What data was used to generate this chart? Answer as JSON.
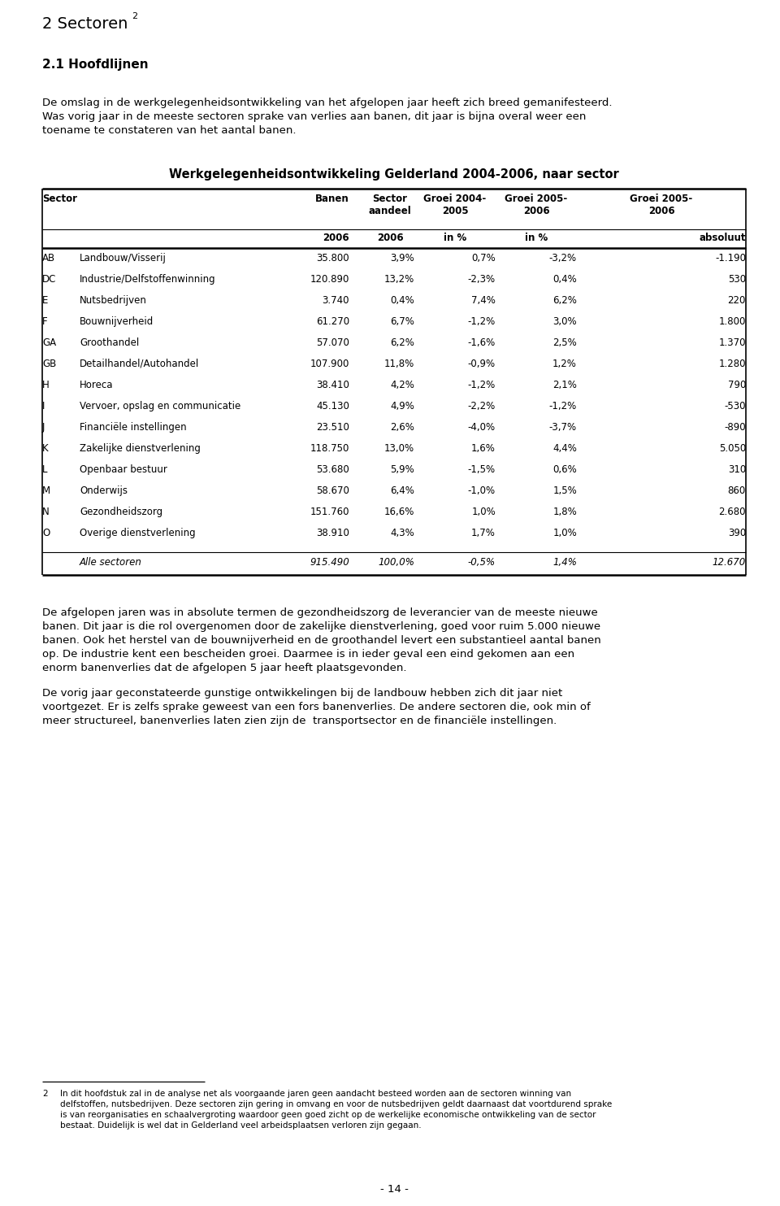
{
  "page_title": "2 Sectoren",
  "page_title_sup": "2",
  "section_title": "2.1 Hoofdlijnen",
  "para1_lines": [
    "De omslag in de werkgelegenheidsontwikkeling van het afgelopen jaar heeft zich breed gemanifesteerd.",
    "Was vorig jaar in de meeste sectoren sprake van verlies aan banen, dit jaar is bijna overal weer een",
    "toename te constateren van het aantal banen."
  ],
  "table_title": "Werkgelegenheidsontwikkeling Gelderland 2004-2006, naar sector",
  "h1_col0": "Sector",
  "h1_col2": "Banen",
  "h1_col3": "Sector\naandeel",
  "h1_col4": "Groei 2004-\n2005",
  "h1_col5": "Groei 2005-\n2006",
  "h1_col6": "Groei 2005-\n2006",
  "h2_col2": "2006",
  "h2_col3": "2006",
  "h2_col4": "in %",
  "h2_col5": "in %",
  "h2_col6": "absoluut",
  "table_data": [
    [
      "AB",
      "Landbouw/Visserij",
      "35.800",
      "3,9%",
      "0,7%",
      "-3,2%",
      "-1.190"
    ],
    [
      "DC",
      "Industrie/Delfstoffenwinning",
      "120.890",
      "13,2%",
      "-2,3%",
      "0,4%",
      "530"
    ],
    [
      "E",
      "Nutsbedrijven",
      "3.740",
      "0,4%",
      "7,4%",
      "6,2%",
      "220"
    ],
    [
      "F",
      "Bouwnijverheid",
      "61.270",
      "6,7%",
      "-1,2%",
      "3,0%",
      "1.800"
    ],
    [
      "GA",
      "Groothandel",
      "57.070",
      "6,2%",
      "-1,6%",
      "2,5%",
      "1.370"
    ],
    [
      "GB",
      "Detailhandel/Autohandel",
      "107.900",
      "11,8%",
      "-0,9%",
      "1,2%",
      "1.280"
    ],
    [
      "H",
      "Horeca",
      "38.410",
      "4,2%",
      "-1,2%",
      "2,1%",
      "790"
    ],
    [
      "I",
      "Vervoer, opslag en communicatie",
      "45.130",
      "4,9%",
      "-2,2%",
      "-1,2%",
      "-530"
    ],
    [
      "J",
      "Financiële instellingen",
      "23.510",
      "2,6%",
      "-4,0%",
      "-3,7%",
      "-890"
    ],
    [
      "K",
      "Zakelijke dienstverlening",
      "118.750",
      "13,0%",
      "1,6%",
      "4,4%",
      "5.050"
    ],
    [
      "L",
      "Openbaar bestuur",
      "53.680",
      "5,9%",
      "-1,5%",
      "0,6%",
      "310"
    ],
    [
      "M",
      "Onderwijs",
      "58.670",
      "6,4%",
      "-1,0%",
      "1,5%",
      "860"
    ],
    [
      "N",
      "Gezondheidszorg",
      "151.760",
      "16,6%",
      "1,0%",
      "1,8%",
      "2.680"
    ],
    [
      "O",
      "Overige dienstverlening",
      "38.910",
      "4,3%",
      "1,7%",
      "1,0%",
      "390"
    ]
  ],
  "footer_row": [
    "",
    "Alle sectoren",
    "915.490",
    "100,0%",
    "-0,5%",
    "1,4%",
    "12.670"
  ],
  "para2_lines": [
    "De afgelopen jaren was in absolute termen de gezondheidszorg de leverancier van de meeste nieuwe",
    "banen. Dit jaar is die rol overgenomen door de zakelijke dienstverlening, goed voor ruim 5.000 nieuwe",
    "banen. Ook het herstel van de bouwnijverheid en de groothandel levert een substantieel aantal banen",
    "op. De industrie kent een bescheiden groei. Daarmee is in ieder geval een eind gekomen aan een",
    "enorm banenverlies dat de afgelopen 5 jaar heeft plaatsgevonden."
  ],
  "para3_lines": [
    "De vorig jaar geconstateerde gunstige ontwikkelingen bij de landbouw hebben zich dit jaar niet",
    "voortgezet. Er is zelfs sprake geweest van een fors banenverlies. De andere sectoren die, ook min of",
    "meer structureel, banenverlies laten zien zijn de  transportsector en de financiële instellingen."
  ],
  "footnote_num": "2",
  "footnote_lines": [
    "In dit hoofdstuk zal in de analyse net als voorgaande jaren geen aandacht besteed worden aan de sectoren winning van",
    "delfstoffen, nutsbedrijven. Deze sectoren zijn gering in omvang en voor de nutsbedrijven geldt daarnaast dat voortdurend sprake",
    "is van reorganisaties en schaalvergroting waardoor geen goed zicht op de werkelijke economische ontwikkeling van de sector",
    "bestaat. Duidelijk is wel dat in Gelderland veel arbeidsplaatsen verloren zijn gegaan."
  ],
  "page_number": "- 14 -",
  "bg_color": "#ffffff",
  "text_color": "#000000"
}
